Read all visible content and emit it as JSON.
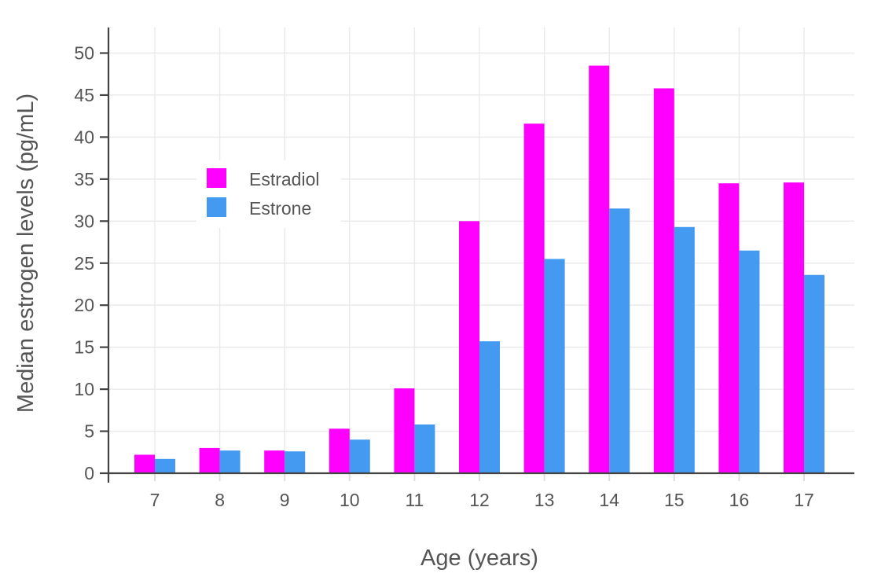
{
  "chart_data": {
    "type": "bar",
    "title": "",
    "xlabel": "Age (years)",
    "ylabel": "Median estrogen levels (pg/mL)",
    "categories": [
      "7",
      "8",
      "9",
      "10",
      "11",
      "12",
      "13",
      "14",
      "15",
      "16",
      "17"
    ],
    "series": [
      {
        "name": "Estradiol",
        "color": "#FF00FF",
        "values": [
          2.2,
          3.0,
          2.7,
          5.3,
          10.1,
          30.0,
          41.6,
          48.5,
          45.8,
          34.5,
          34.6
        ]
      },
      {
        "name": "Estrone",
        "color": "#4499F0",
        "values": [
          1.7,
          2.7,
          2.6,
          4.0,
          5.8,
          15.7,
          25.5,
          31.5,
          29.3,
          26.5,
          23.6
        ]
      }
    ],
    "ylim": [
      0,
      50
    ],
    "yticks": [
      0,
      5,
      10,
      15,
      20,
      25,
      30,
      35,
      40,
      45,
      50
    ],
    "grid": true,
    "legend_position": "inside-upper-left",
    "colors": {
      "background": "#FFFFFF",
      "axis_line": "#444444",
      "text": "#555555",
      "gridline": "#E9E9E9",
      "x_tick": "#DEDEDE"
    }
  }
}
